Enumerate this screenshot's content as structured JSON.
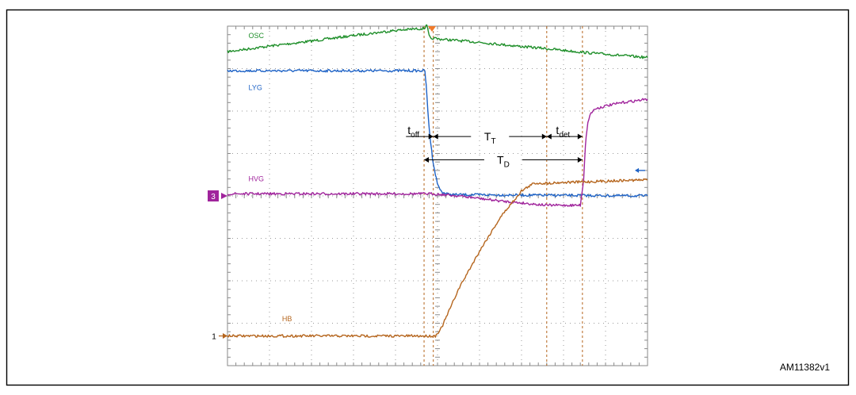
{
  "figure_id": "AM11382v1",
  "chart_data": {
    "type": "line",
    "title": "",
    "xlabel": "",
    "ylabel": "",
    "grid": true,
    "xlim": [
      0,
      10
    ],
    "ylim": [
      -4,
      4
    ],
    "ground_markers": [
      {
        "label": "3",
        "y": 0,
        "color": "#a0249c"
      },
      {
        "label": "1",
        "y": -3.3,
        "color": "#b5651d"
      }
    ],
    "series": [
      {
        "name": "OSC",
        "color": "#1f8f2a",
        "x": [
          0,
          1,
          2,
          3,
          4,
          4.7,
          4.73,
          4.76,
          4.8,
          4.85,
          4.9,
          5.0,
          5.5,
          6,
          6.5,
          7,
          7.5,
          8,
          8.5,
          9,
          10
        ],
        "y": [
          3.4,
          3.53,
          3.65,
          3.78,
          3.9,
          3.95,
          4.05,
          3.95,
          3.77,
          3.68,
          3.72,
          3.7,
          3.66,
          3.62,
          3.57,
          3.52,
          3.48,
          3.43,
          3.38,
          3.34,
          3.26
        ]
      },
      {
        "name": "LYG",
        "color": "#1f63c6",
        "x": [
          0,
          4.7,
          4.73,
          4.77,
          4.82,
          4.88,
          4.95,
          5.02,
          5.1,
          5.2,
          5.35,
          10
        ],
        "y": [
          2.95,
          2.95,
          2.6,
          2.0,
          1.4,
          0.9,
          0.5,
          0.22,
          0.1,
          0.05,
          0.03,
          0.0
        ]
      },
      {
        "name": "HVG",
        "color": "#a0249c",
        "x": [
          0,
          4.9,
          5.5,
          6.5,
          7.6,
          8.4,
          8.48,
          8.52,
          8.58,
          8.65,
          8.75,
          9.0,
          9.4,
          10
        ],
        "y": [
          0.05,
          0.05,
          0.0,
          -0.12,
          -0.22,
          -0.22,
          0.4,
          1.2,
          1.75,
          1.95,
          2.05,
          2.12,
          2.2,
          2.28
        ]
      },
      {
        "name": "HB",
        "color": "#b5651d",
        "x": [
          0,
          4.95,
          5.1,
          5.5,
          6.0,
          6.5,
          7.0,
          7.3,
          7.6,
          8.0,
          8.5,
          9.0,
          10
        ],
        "y": [
          -3.3,
          -3.3,
          -3.1,
          -2.2,
          -1.3,
          -0.5,
          0.12,
          0.3,
          0.3,
          0.32,
          0.33,
          0.35,
          0.38
        ]
      }
    ],
    "markers": [
      {
        "name": "trigger-line",
        "x": 4.68
      },
      {
        "name": "toff-end-line",
        "x": 4.9
      },
      {
        "name": "tt-end-line",
        "x": 7.6
      },
      {
        "name": "tdet-end-line",
        "x": 8.45
      }
    ],
    "annotations": [
      {
        "key": "toff",
        "base": "t",
        "sub": "off",
        "x_from": 4.25,
        "x_to": 4.9,
        "y": 1.4
      },
      {
        "key": "TT",
        "base": "T",
        "sub": "T",
        "x_from": 4.9,
        "x_to": 7.6,
        "y": 1.4
      },
      {
        "key": "tdet",
        "base": "t",
        "sub": "det",
        "x_from": 7.6,
        "x_to": 8.45,
        "y": 1.4
      },
      {
        "key": "TD",
        "base": "T",
        "sub": "D",
        "x_from": 4.68,
        "x_to": 8.45,
        "y": 0.85
      }
    ]
  }
}
